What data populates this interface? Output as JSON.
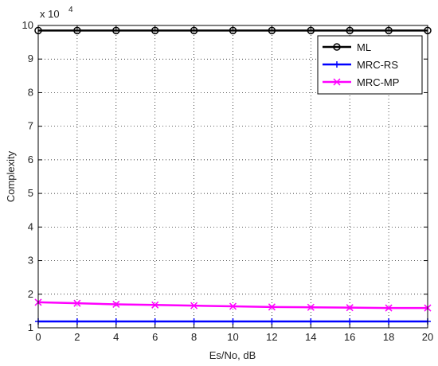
{
  "chart_data": {
    "type": "line",
    "title": "",
    "xlabel": "Es/No, dB",
    "ylabel": "Complexity",
    "y_multiplier_label": "x 10",
    "y_multiplier_exponent": "4",
    "y_scale": 10000,
    "xlim": [
      0,
      20
    ],
    "ylim": [
      1,
      10
    ],
    "x_ticks": [
      0,
      2,
      4,
      6,
      8,
      10,
      12,
      14,
      16,
      18,
      20
    ],
    "y_ticks": [
      1,
      2,
      3,
      4,
      5,
      6,
      7,
      8,
      9,
      10
    ],
    "x": [
      0,
      2,
      4,
      6,
      8,
      10,
      12,
      14,
      16,
      18,
      20
    ],
    "grid": true,
    "legend_position": "top-right",
    "series": [
      {
        "name": "ML",
        "color": "#000000",
        "marker": "circle",
        "values": [
          98500,
          98500,
          98500,
          98500,
          98500,
          98500,
          98500,
          98500,
          98500,
          98500,
          98500
        ]
      },
      {
        "name": "MRC-RS",
        "color": "#0000ff",
        "marker": "plus",
        "values": [
          11900,
          11900,
          11900,
          11900,
          11900,
          11900,
          11900,
          11900,
          11900,
          11900,
          11900
        ]
      },
      {
        "name": "MRC-MP",
        "color": "#ff00ff",
        "marker": "cross",
        "values": [
          17600,
          17300,
          17000,
          16800,
          16600,
          16400,
          16200,
          16100,
          16000,
          15900,
          15900
        ]
      }
    ]
  }
}
